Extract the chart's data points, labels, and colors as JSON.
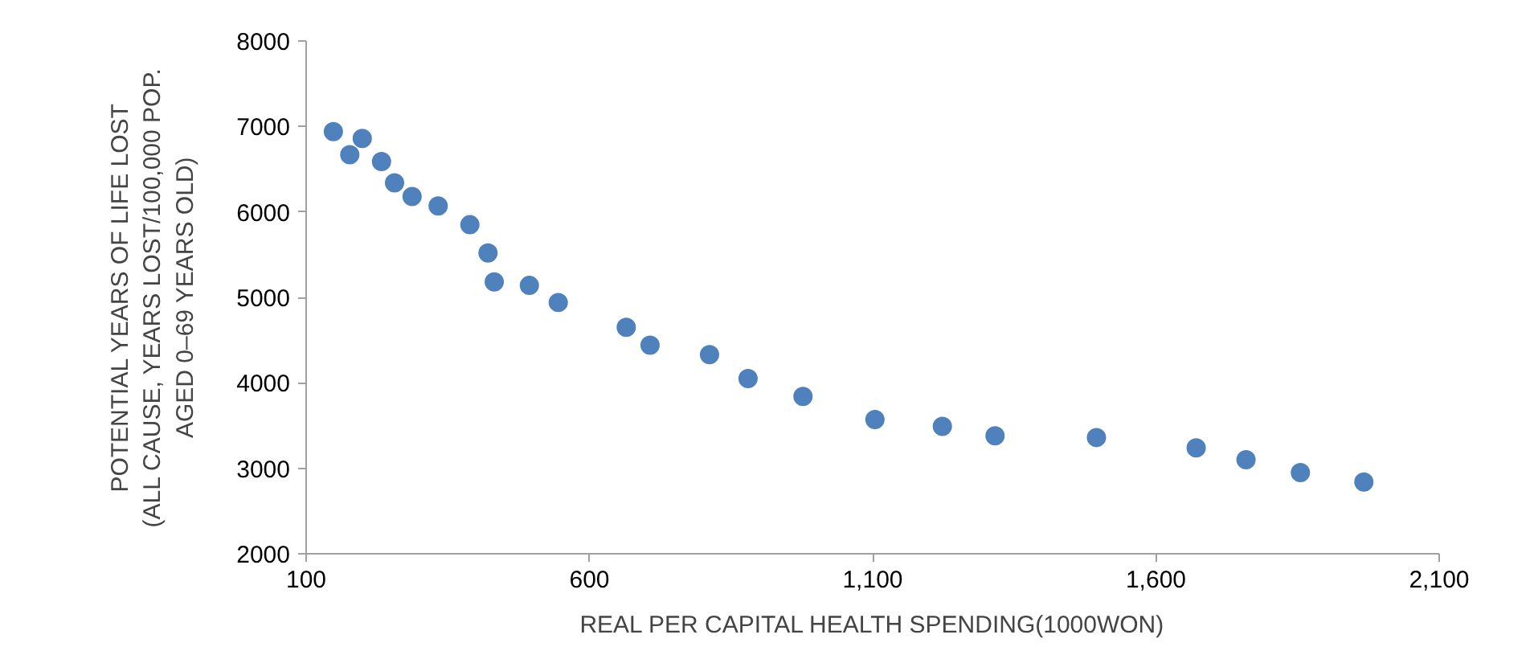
{
  "chart_data": {
    "type": "scatter",
    "xlabel": "REAL PER CAPITAL HEALTH SPENDING(1000WON)",
    "ylabel": "POTENTIAL YEARS OF LIFE LOST\n(ALL CAUSE, YEARS LOST/100,000 POP.\nAGED 0–69 YEARS OLD)",
    "x": [
      148,
      177,
      199,
      233,
      256,
      287,
      333,
      389,
      421,
      432,
      494,
      545,
      665,
      707,
      812,
      880,
      977,
      1104,
      1223,
      1316,
      1495,
      1671,
      1759,
      1855,
      1967
    ],
    "series": [
      {
        "color": "#4f81bd",
        "values": [
          6940,
          6670,
          6860,
          6590,
          6340,
          6180,
          6070,
          5850,
          5520,
          5180,
          5140,
          4940,
          4650,
          4440,
          4330,
          4050,
          3840,
          3570,
          3490,
          3380,
          3360,
          3240,
          3100,
          2950,
          2840
        ]
      }
    ],
    "marker": "circle",
    "xlim": [
      100,
      2100
    ],
    "xticks": [
      100,
      600,
      {
        "value": 1100,
        "label": "1,100"
      },
      {
        "value": 1600,
        "label": "1,600"
      },
      {
        "value": 2100,
        "label": "2,100"
      }
    ],
    "ylim": [
      2000,
      8000
    ],
    "yticks": [
      2000,
      3000,
      4000,
      5000,
      6000,
      7000,
      8000
    ],
    "grid": false
  }
}
